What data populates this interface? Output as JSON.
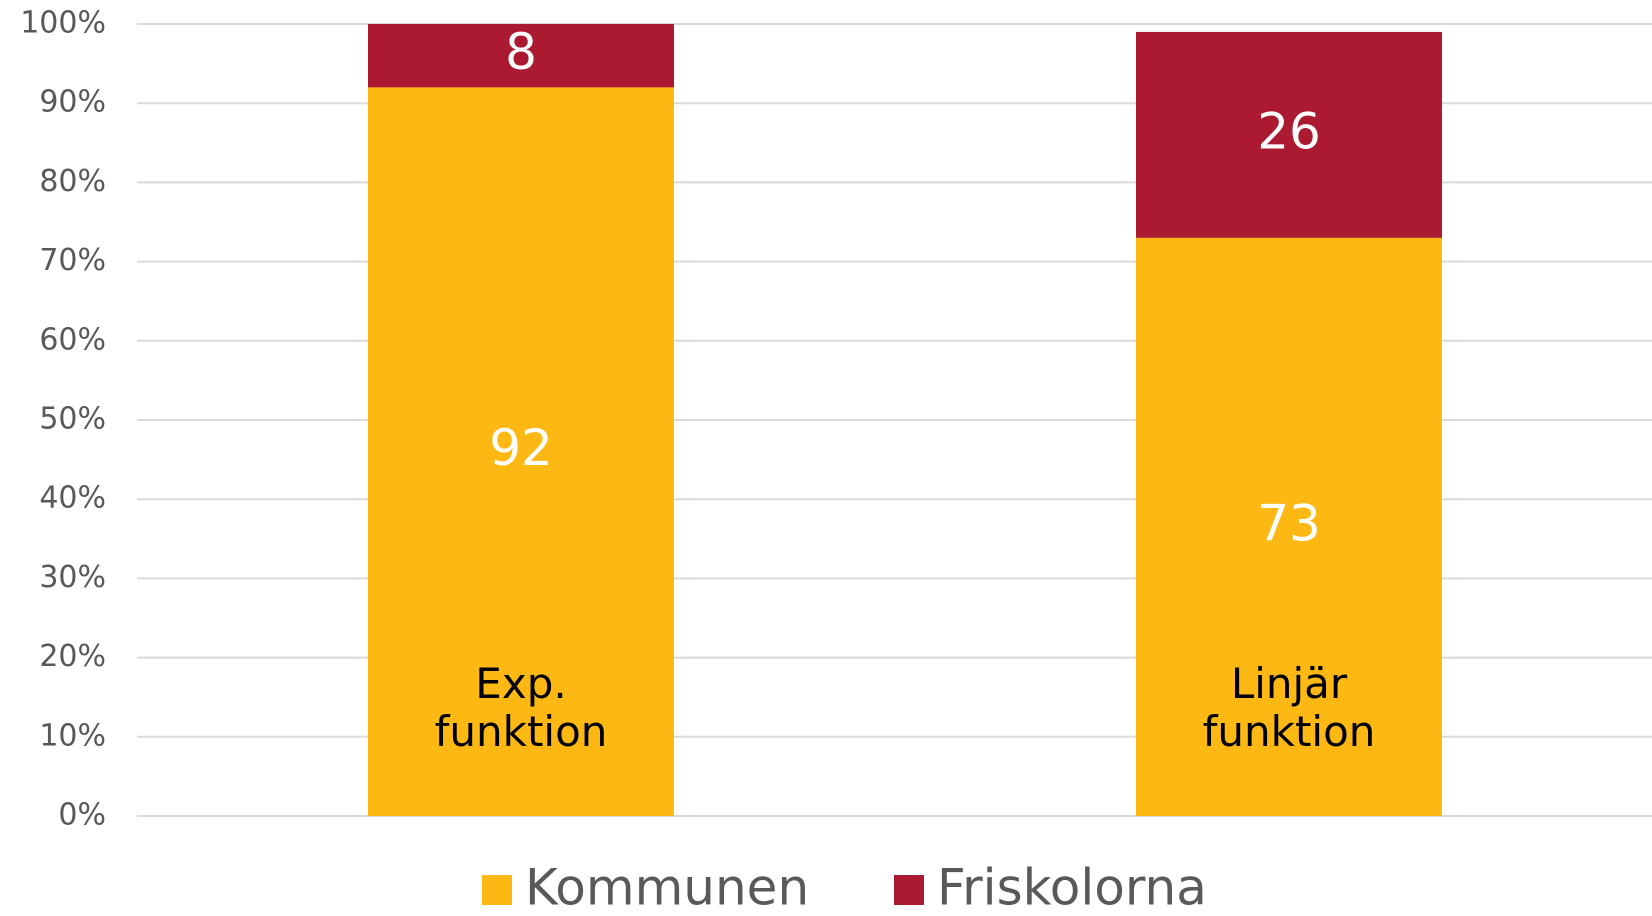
{
  "chart_data": {
    "type": "stacked_bar",
    "categories": [
      "Exp. funktion",
      "Linjär funktion"
    ],
    "series": [
      {
        "name": "Kommunen",
        "color": "#fdb813",
        "values": [
          92,
          73
        ]
      },
      {
        "name": "Friskolorna",
        "color": "#ab1a30",
        "values": [
          8,
          26
        ]
      }
    ],
    "ylim": [
      0,
      100
    ],
    "yticks": [
      {
        "value": 0,
        "label": "0%"
      },
      {
        "value": 10,
        "label": "10%"
      },
      {
        "value": 20,
        "label": "20%"
      },
      {
        "value": 30,
        "label": "30%"
      },
      {
        "value": 40,
        "label": "40%"
      },
      {
        "value": 50,
        "label": "50%"
      },
      {
        "value": 60,
        "label": "60%"
      },
      {
        "value": 70,
        "label": "70%"
      },
      {
        "value": 80,
        "label": "80%"
      },
      {
        "value": 90,
        "label": "90%"
      },
      {
        "value": 100,
        "label": "100%"
      }
    ],
    "grid": true,
    "legend": "bottom"
  }
}
